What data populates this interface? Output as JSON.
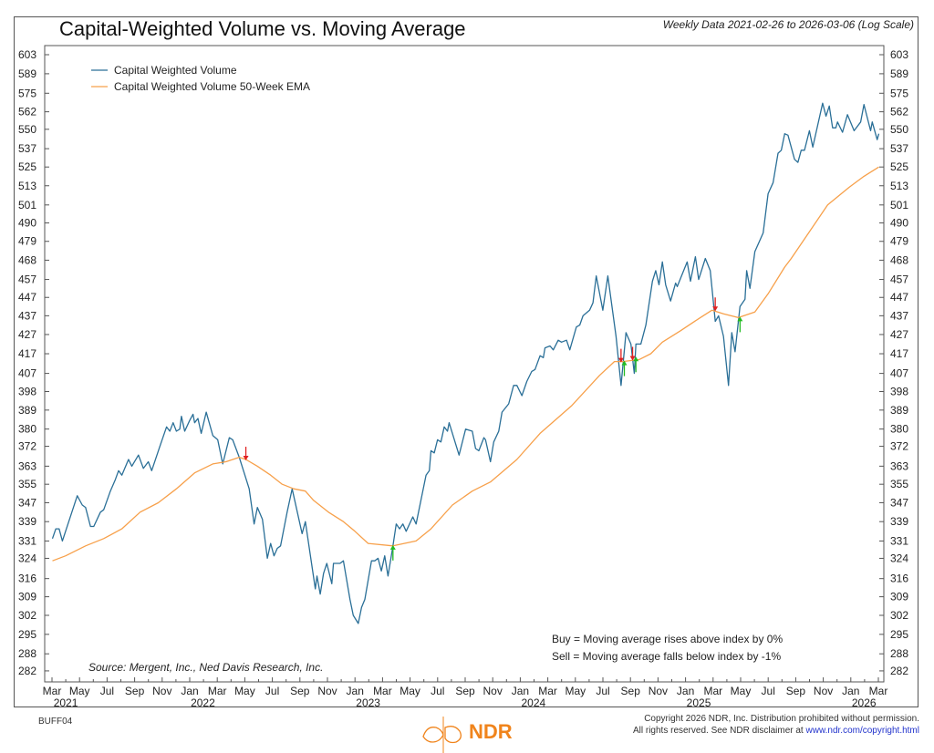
{
  "chart_data": {
    "type": "line",
    "title": "Capital-Weighted Volume vs. Moving Average",
    "subtitle": "Weekly Data 2021-02-26 to 2026-03-06 (Log Scale)",
    "yscale": "log",
    "ylim": [
      279,
      610
    ],
    "xlim": [
      2021.12,
      2026.22
    ],
    "yticks": [
      603,
      589,
      575,
      562,
      550,
      537,
      525,
      513,
      501,
      490,
      479,
      468,
      457,
      447,
      437,
      427,
      417,
      407,
      398,
      389,
      380,
      372,
      363,
      355,
      347,
      339,
      331,
      324,
      316,
      309,
      302,
      295,
      288,
      282
    ],
    "xticks": [
      "Mar",
      "May",
      "Jul",
      "Sep",
      "Nov",
      "Jan",
      "Mar",
      "May",
      "Jul",
      "Sep",
      "Nov",
      "Jan",
      "Mar",
      "May",
      "Jul",
      "Sep",
      "Nov",
      "Jan",
      "Mar",
      "May",
      "Jul",
      "Sep",
      "Nov",
      "Jan",
      "Mar",
      "May",
      "Jul",
      "Sep",
      "Nov",
      "Jan",
      "Mar"
    ],
    "xtick_start": 2021.167,
    "year_labels": [
      {
        "label": "2021",
        "at": 2021.25
      },
      {
        "label": "2022",
        "at": 2022.08
      },
      {
        "label": "2023",
        "at": 2023.08
      },
      {
        "label": "2024",
        "at": 2024.08
      },
      {
        "label": "2025",
        "at": 2025.08
      },
      {
        "label": "2026",
        "at": 2026.08
      }
    ],
    "legend": {
      "position": "top-left",
      "entries": [
        {
          "name": "Capital Weighted Volume",
          "color": "#2a6f97"
        },
        {
          "name": "Capital Weighted Volume 50-Week EMA",
          "color": "#f7a04a"
        }
      ]
    },
    "series": [
      {
        "name": "Capital Weighted Volume",
        "color": "#2a6f97",
        "points": [
          [
            2021.17,
            332
          ],
          [
            2021.19,
            336
          ],
          [
            2021.21,
            336
          ],
          [
            2021.23,
            331
          ],
          [
            2021.32,
            350
          ],
          [
            2021.35,
            346
          ],
          [
            2021.37,
            345
          ],
          [
            2021.4,
            337
          ],
          [
            2021.42,
            337
          ],
          [
            2021.46,
            343
          ],
          [
            2021.48,
            344
          ],
          [
            2021.52,
            352
          ],
          [
            2021.55,
            357
          ],
          [
            2021.57,
            361
          ],
          [
            2021.59,
            359
          ],
          [
            2021.63,
            366
          ],
          [
            2021.65,
            363
          ],
          [
            2021.69,
            368
          ],
          [
            2021.72,
            362
          ],
          [
            2021.75,
            365
          ],
          [
            2021.77,
            361
          ],
          [
            2021.82,
            372
          ],
          [
            2021.86,
            381
          ],
          [
            2021.88,
            379
          ],
          [
            2021.9,
            383
          ],
          [
            2021.92,
            379
          ],
          [
            2021.94,
            380
          ],
          [
            2021.95,
            386
          ],
          [
            2021.97,
            379
          ],
          [
            2022.0,
            384
          ],
          [
            2022.02,
            387
          ],
          [
            2022.03,
            383
          ],
          [
            2022.05,
            385
          ],
          [
            2022.07,
            378
          ],
          [
            2022.1,
            388
          ],
          [
            2022.14,
            377
          ],
          [
            2022.17,
            375
          ],
          [
            2022.2,
            364
          ],
          [
            2022.24,
            376
          ],
          [
            2022.26,
            375
          ],
          [
            2022.3,
            367
          ],
          [
            2022.36,
            353
          ],
          [
            2022.39,
            338
          ],
          [
            2022.41,
            345
          ],
          [
            2022.44,
            340
          ],
          [
            2022.47,
            324
          ],
          [
            2022.49,
            330
          ],
          [
            2022.51,
            325
          ],
          [
            2022.53,
            328
          ],
          [
            2022.55,
            329
          ],
          [
            2022.59,
            343
          ],
          [
            2022.62,
            353
          ],
          [
            2022.68,
            334
          ],
          [
            2022.7,
            339
          ],
          [
            2022.76,
            312
          ],
          [
            2022.77,
            317
          ],
          [
            2022.79,
            310
          ],
          [
            2022.81,
            318
          ],
          [
            2022.83,
            322
          ],
          [
            2022.86,
            314
          ],
          [
            2022.87,
            322
          ],
          [
            2022.91,
            322
          ],
          [
            2022.93,
            323
          ],
          [
            2022.97,
            308
          ],
          [
            2022.99,
            302
          ],
          [
            2023.02,
            299
          ],
          [
            2023.04,
            305
          ],
          [
            2023.06,
            308
          ],
          [
            2023.1,
            323
          ],
          [
            2023.12,
            323
          ],
          [
            2023.14,
            324
          ],
          [
            2023.16,
            319
          ],
          [
            2023.18,
            325
          ],
          [
            2023.2,
            317
          ],
          [
            2023.23,
            329
          ],
          [
            2023.25,
            338
          ],
          [
            2023.27,
            336
          ],
          [
            2023.29,
            338
          ],
          [
            2023.31,
            335
          ],
          [
            2023.35,
            341
          ],
          [
            2023.37,
            338
          ],
          [
            2023.43,
            359
          ],
          [
            2023.45,
            361
          ],
          [
            2023.46,
            370
          ],
          [
            2023.48,
            369
          ],
          [
            2023.5,
            375
          ],
          [
            2023.52,
            374
          ],
          [
            2023.54,
            381
          ],
          [
            2023.56,
            379
          ],
          [
            2023.57,
            383
          ],
          [
            2023.63,
            368
          ],
          [
            2023.67,
            380
          ],
          [
            2023.71,
            379
          ],
          [
            2023.73,
            371
          ],
          [
            2023.75,
            370
          ],
          [
            2023.78,
            376
          ],
          [
            2023.79,
            375
          ],
          [
            2023.82,
            365
          ],
          [
            2023.84,
            374
          ],
          [
            2023.87,
            379
          ],
          [
            2023.89,
            388
          ],
          [
            2023.93,
            392
          ],
          [
            2023.96,
            401
          ],
          [
            2023.98,
            401
          ],
          [
            2024.01,
            396
          ],
          [
            2024.04,
            403
          ],
          [
            2024.07,
            408
          ],
          [
            2024.09,
            409
          ],
          [
            2024.12,
            416
          ],
          [
            2024.14,
            415
          ],
          [
            2024.15,
            420
          ],
          [
            2024.18,
            421
          ],
          [
            2024.2,
            419
          ],
          [
            2024.23,
            424
          ],
          [
            2024.25,
            423
          ],
          [
            2024.28,
            424
          ],
          [
            2024.3,
            419
          ],
          [
            2024.34,
            431
          ],
          [
            2024.36,
            432
          ],
          [
            2024.38,
            437
          ],
          [
            2024.42,
            440
          ],
          [
            2024.44,
            444
          ],
          [
            2024.46,
            459
          ],
          [
            2024.5,
            440
          ],
          [
            2024.53,
            459
          ],
          [
            2024.58,
            426
          ],
          [
            2024.61,
            401
          ],
          [
            2024.64,
            428
          ],
          [
            2024.67,
            422
          ],
          [
            2024.69,
            407
          ],
          [
            2024.7,
            422
          ],
          [
            2024.73,
            422
          ],
          [
            2024.76,
            432
          ],
          [
            2024.8,
            456
          ],
          [
            2024.82,
            462
          ],
          [
            2024.84,
            454
          ],
          [
            2024.86,
            467
          ],
          [
            2024.88,
            454
          ],
          [
            2024.91,
            445
          ],
          [
            2024.94,
            455
          ],
          [
            2024.95,
            453
          ],
          [
            2025.01,
            467
          ],
          [
            2025.03,
            456
          ],
          [
            2025.06,
            470
          ],
          [
            2025.08,
            457
          ],
          [
            2025.12,
            469
          ],
          [
            2025.15,
            462
          ],
          [
            2025.18,
            434
          ],
          [
            2025.2,
            437
          ],
          [
            2025.23,
            426
          ],
          [
            2025.26,
            401
          ],
          [
            2025.28,
            428
          ],
          [
            2025.3,
            418
          ],
          [
            2025.33,
            442
          ],
          [
            2025.36,
            446
          ],
          [
            2025.37,
            462
          ],
          [
            2025.39,
            452
          ],
          [
            2025.42,
            473
          ],
          [
            2025.47,
            484
          ],
          [
            2025.5,
            508
          ],
          [
            2025.53,
            515
          ],
          [
            2025.56,
            534
          ],
          [
            2025.58,
            536
          ],
          [
            2025.6,
            547
          ],
          [
            2025.62,
            546
          ],
          [
            2025.66,
            530
          ],
          [
            2025.68,
            528
          ],
          [
            2025.7,
            536
          ],
          [
            2025.72,
            536
          ],
          [
            2025.75,
            549
          ],
          [
            2025.77,
            538
          ],
          [
            2025.83,
            568
          ],
          [
            2025.85,
            559
          ],
          [
            2025.87,
            566
          ],
          [
            2025.89,
            551
          ],
          [
            2025.91,
            551
          ],
          [
            2025.92,
            555
          ],
          [
            2025.95,
            548
          ],
          [
            2025.98,
            560
          ],
          [
            2026.02,
            549
          ],
          [
            2026.06,
            555
          ],
          [
            2026.08,
            567
          ],
          [
            2026.12,
            549
          ],
          [
            2026.13,
            555
          ],
          [
            2026.16,
            543
          ],
          [
            2026.17,
            547
          ]
        ]
      },
      {
        "name": "Capital Weighted Volume 50-Week EMA",
        "color": "#f7a04a",
        "points": [
          [
            2021.17,
            323
          ],
          [
            2021.25,
            325
          ],
          [
            2021.37,
            329
          ],
          [
            2021.48,
            332
          ],
          [
            2021.59,
            336
          ],
          [
            2021.7,
            343
          ],
          [
            2021.81,
            347
          ],
          [
            2021.92,
            353
          ],
          [
            2022.03,
            360
          ],
          [
            2022.14,
            364
          ],
          [
            2022.22,
            365
          ],
          [
            2022.3,
            367
          ],
          [
            2022.34,
            366
          ],
          [
            2022.41,
            363
          ],
          [
            2022.49,
            359
          ],
          [
            2022.56,
            355
          ],
          [
            2022.63,
            353
          ],
          [
            2022.7,
            352
          ],
          [
            2022.75,
            348
          ],
          [
            2022.84,
            343
          ],
          [
            2022.93,
            339
          ],
          [
            2023.0,
            335
          ],
          [
            2023.08,
            330
          ],
          [
            2023.23,
            329
          ],
          [
            2023.37,
            331
          ],
          [
            2023.46,
            336
          ],
          [
            2023.59,
            346
          ],
          [
            2023.71,
            352
          ],
          [
            2023.82,
            356
          ],
          [
            2023.98,
            366
          ],
          [
            2024.12,
            378
          ],
          [
            2024.31,
            391
          ],
          [
            2024.48,
            406
          ],
          [
            2024.57,
            413
          ],
          [
            2024.62,
            413
          ],
          [
            2024.72,
            414
          ],
          [
            2024.79,
            417
          ],
          [
            2024.86,
            423
          ],
          [
            2024.97,
            429
          ],
          [
            2025.09,
            436
          ],
          [
            2025.16,
            440
          ],
          [
            2025.23,
            438
          ],
          [
            2025.32,
            436
          ],
          [
            2025.42,
            439
          ],
          [
            2025.5,
            449
          ],
          [
            2025.6,
            464
          ],
          [
            2025.64,
            469
          ],
          [
            2025.86,
            501
          ],
          [
            2025.99,
            512
          ],
          [
            2026.08,
            519
          ],
          [
            2026.17,
            525
          ]
        ]
      }
    ],
    "signals": [
      {
        "type": "sell",
        "x": 2022.34,
        "y": 366
      },
      {
        "type": "buy",
        "x": 2023.23,
        "y": 329
      },
      {
        "type": "sell",
        "x": 2024.61,
        "y": 413
      },
      {
        "type": "buy",
        "x": 2024.63,
        "y": 413
      },
      {
        "type": "sell",
        "x": 2024.68,
        "y": 414
      },
      {
        "type": "buy",
        "x": 2024.7,
        "y": 415
      },
      {
        "type": "sell",
        "x": 2025.18,
        "y": 440
      },
      {
        "type": "buy",
        "x": 2025.33,
        "y": 436
      }
    ],
    "signal_colors": {
      "buy": "#22bb22",
      "sell": "#e02020"
    },
    "annotations": {
      "buy_rule": "Buy = Moving average rises above index by 0%",
      "sell_rule": "Sell = Moving average falls below index by -1%",
      "source": "Source:   Mergent, Inc., Ned Davis Research, Inc."
    }
  },
  "footer": {
    "code": "BUFF04",
    "logo": "NDR",
    "copyright_line1": "Copyright 2026 NDR, Inc. Distribution prohibited without permission.",
    "copyright_line2": "All rights reserved. See NDR disclaimer at ",
    "link": "www.ndr.com/copyright.html"
  }
}
